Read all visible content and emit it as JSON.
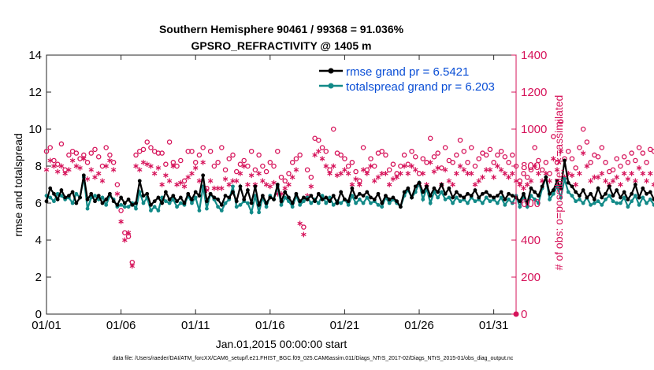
{
  "chart_data": {
    "type": "line",
    "title": "Southern Hemisphere 90461 / 99368 = 91.036%",
    "subtitle": "GPSRO_REFRACTIVITY @ 1405 m",
    "xlabel": "Jan.01,2015 00:00:00 start",
    "ylabel_left": "rmse and totalspread",
    "ylabel_right": "# of obs: o=possible; ∗=assimilated",
    "footer": "data file: /Users/raeder/DAI/ATM_forcXX/CAM6_setup/f.e21.FHIST_BGC.f09_025.CAM6assim.011/Diags_NTrS_2017-02/Diags_NTrS_2015-01/obs_diag_output.nc",
    "xlim": [
      1,
      32.5
    ],
    "x_ticks": [
      1,
      6,
      11,
      16,
      21,
      26,
      31
    ],
    "x_tick_labels": [
      "01/01",
      "01/06",
      "01/11",
      "01/16",
      "01/21",
      "01/26",
      "01/31"
    ],
    "ylim_left": [
      0,
      14
    ],
    "y_ticks_left": [
      "0",
      "2",
      "4",
      "6",
      "8",
      "10",
      "12",
      "14"
    ],
    "ylim_right": [
      0,
      1400
    ],
    "y_ticks_right": [
      "0",
      "200",
      "400",
      "600",
      "800",
      "1000",
      "1200",
      "1400"
    ],
    "colors": {
      "rmse": "#000000",
      "spread": "#128a88",
      "obs": "#d6135a",
      "legend_text": "#0b4fd6"
    },
    "x_start": 1.0,
    "x_step": 0.25,
    "series": [
      {
        "name": "rmse grand pr = 6.5421",
        "axis": "left",
        "values": [
          6.1,
          6.8,
          6.5,
          6.2,
          6.7,
          6.3,
          6.4,
          6.6,
          6.0,
          6.3,
          7.5,
          6.2,
          6.5,
          6.1,
          6.4,
          6.0,
          6.2,
          6.5,
          6.1,
          5.9,
          6.3,
          6.0,
          6.2,
          5.9,
          6.0,
          7.2,
          6.4,
          6.5,
          5.9,
          6.1,
          6.3,
          6.0,
          6.6,
          6.2,
          6.4,
          6.1,
          6.3,
          6.0,
          6.5,
          6.2,
          6.6,
          6.4,
          7.5,
          6.1,
          6.5,
          6.3,
          6.2,
          5.9,
          6.4,
          6.3,
          6.6,
          6.1,
          6.9,
          6.2,
          6.7,
          6.0,
          6.9,
          5.9,
          6.4,
          6.0,
          6.3,
          6.2,
          7.0,
          6.1,
          6.6,
          6.3,
          6.0,
          6.5,
          6.1,
          6.3,
          6.2,
          6.4,
          6.1,
          6.5,
          6.2,
          6.3,
          6.1,
          6.4,
          6.0,
          6.6,
          6.2,
          6.1,
          6.8,
          6.3,
          6.5,
          6.4,
          6.6,
          6.3,
          6.2,
          6.5,
          6.0,
          6.4,
          6.2,
          6.3,
          6.1,
          5.8,
          6.6,
          6.8,
          6.3,
          6.9,
          7.1,
          6.6,
          6.9,
          6.4,
          6.8,
          6.6,
          7.0,
          6.5,
          6.8,
          6.3,
          6.6,
          6.4,
          6.3,
          6.5,
          6.4,
          6.7,
          6.3,
          6.5,
          6.6,
          6.4,
          6.3,
          6.4,
          6.6,
          6.2,
          6.5,
          6.4,
          6.3,
          6.1,
          6.5,
          6.0,
          6.8,
          6.6,
          6.4,
          6.9,
          7.4,
          6.5,
          6.7,
          7.2,
          6.8,
          8.3,
          7.1,
          6.9,
          6.6,
          6.4,
          6.7,
          6.3,
          6.5,
          6.2,
          6.8,
          6.3,
          6.5,
          6.9,
          6.4,
          6.7,
          6.3,
          6.6,
          6.2,
          6.5,
          7.0,
          6.3,
          6.8,
          6.5,
          6.6,
          6.2,
          6.4,
          6.9,
          6.5,
          7.1,
          6.8,
          6.6,
          7.8,
          7.3,
          6.7,
          6.5,
          6.5
        ],
        "marker": "dot"
      },
      {
        "name": "totalspread grand pr = 6.203",
        "axis": "left",
        "values": [
          6.4,
          6.3,
          6.1,
          6.5,
          6.4,
          6.2,
          6.3,
          6.0,
          6.5,
          6.3,
          7.4,
          5.7,
          6.3,
          6.4,
          6.2,
          6.3,
          5.9,
          6.4,
          6.2,
          5.8,
          5.9,
          5.8,
          5.8,
          6.0,
          5.7,
          6.6,
          6.0,
          6.3,
          5.6,
          5.8,
          5.6,
          6.3,
          6.1,
          6.0,
          6.2,
          5.8,
          6.0,
          5.9,
          6.4,
          6.0,
          6.3,
          5.6,
          6.9,
          5.7,
          6.5,
          6.2,
          5.8,
          5.6,
          6.0,
          6.2,
          6.9,
          5.8,
          5.9,
          6.1,
          6.0,
          5.5,
          6.4,
          5.5,
          6.3,
          5.8,
          6.4,
          6.2,
          6.9,
          5.9,
          6.3,
          6.1,
          5.8,
          6.4,
          5.9,
          6.1,
          6.3,
          6.0,
          6.2,
          6.0,
          6.4,
          6.0,
          6.3,
          5.9,
          6.1,
          6.0,
          6.2,
          5.9,
          6.4,
          6.0,
          6.2,
          6.0,
          6.3,
          6.0,
          6.1,
          5.9,
          5.8,
          6.3,
          6.0,
          6.2,
          6.0,
          5.8,
          6.4,
          6.7,
          6.3,
          6.6,
          7.1,
          6.2,
          6.8,
          6.0,
          6.6,
          6.3,
          6.6,
          6.2,
          6.3,
          6.0,
          6.3,
          6.1,
          6.2,
          6.0,
          6.3,
          6.1,
          6.2,
          6.0,
          6.3,
          6.1,
          6.2,
          6.0,
          6.3,
          5.9,
          6.2,
          6.0,
          6.4,
          5.8,
          6.4,
          5.8,
          6.4,
          6.2,
          6.0,
          6.8,
          7.4,
          6.2,
          6.5,
          6.9,
          6.3,
          7.3,
          6.6,
          6.4,
          6.1,
          6.2,
          6.0,
          6.3,
          5.9,
          6.0,
          6.1,
          5.9,
          6.2,
          6.4,
          6.1,
          6.0,
          6.0,
          6.3,
          5.8,
          6.1,
          6.4,
          5.9,
          6.3,
          6.0,
          6.2,
          5.9,
          6.0,
          6.3,
          6.0,
          6.5,
          6.4,
          6.2,
          6.7,
          6.9,
          5.9,
          5.8,
          5.8
        ],
        "marker": "dot"
      },
      {
        "name": "obs possible",
        "axis": "right",
        "values": [
          880,
          900,
          830,
          810,
          920,
          780,
          860,
          880,
          870,
          840,
          860,
          820,
          870,
          890,
          850,
          800,
          900,
          860,
          820,
          700,
          560,
          440,
          420,
          280,
          860,
          880,
          890,
          930,
          900,
          880,
          870,
          870,
          810,
          930,
          820,
          800,
          830,
          720,
          880,
          880,
          820,
          860,
          900,
          680,
          880,
          800,
          820,
          900,
          780,
          840,
          860,
          770,
          810,
          830,
          800,
          880,
          780,
          860,
          800,
          770,
          820,
          800,
          880,
          740,
          720,
          760,
          820,
          840,
          860,
          470,
          780,
          740,
          950,
          940,
          900,
          880,
          780,
          1000,
          870,
          860,
          840,
          800,
          820,
          770,
          720,
          900,
          780,
          840,
          800,
          870,
          880,
          860,
          780,
          810,
          760,
          800,
          860,
          810,
          880,
          850,
          760,
          840,
          820,
          950,
          850,
          870,
          790,
          900,
          830,
          820,
          860,
          940,
          880,
          820,
          900,
          800,
          840,
          870,
          860,
          890,
          820,
          860,
          880,
          850,
          820,
          860,
          800,
          720,
          760,
          740,
          780,
          900,
          830,
          780,
          820,
          760,
          960,
          820,
          1040,
          840,
          880,
          840,
          790,
          900,
          1000,
          930,
          820,
          860,
          850,
          900,
          820,
          770,
          780,
          840,
          800,
          850,
          820,
          870,
          830,
          900,
          870,
          820,
          890,
          880,
          990,
          820,
          880,
          820,
          900,
          940
        ],
        "marker": "circle"
      },
      {
        "name": "obs assimilated",
        "axis": "right",
        "values": [
          780,
          830,
          800,
          770,
          800,
          760,
          780,
          830,
          800,
          790,
          840,
          730,
          780,
          740,
          760,
          720,
          800,
          830,
          780,
          650,
          500,
          400,
          440,
          260,
          800,
          780,
          820,
          810,
          800,
          760,
          790,
          700,
          750,
          720,
          800,
          700,
          710,
          690,
          740,
          760,
          790,
          720,
          820,
          670,
          720,
          680,
          680,
          680,
          730,
          700,
          720,
          720,
          760,
          800,
          700,
          750,
          700,
          760,
          720,
          700,
          690,
          710,
          650,
          650,
          680,
          700,
          740,
          780,
          490,
          430,
          640,
          690,
          860,
          880,
          840,
          800,
          760,
          800,
          750,
          760,
          780,
          760,
          700,
          730,
          700,
          780,
          760,
          800,
          720,
          740,
          760,
          760,
          700,
          730,
          740,
          760,
          800,
          760,
          800,
          780,
          700,
          760,
          700,
          820,
          770,
          790,
          700,
          780,
          720,
          700,
          760,
          800,
          780,
          760,
          760,
          700,
          720,
          740,
          780,
          780,
          740,
          800,
          780,
          760,
          740,
          760,
          720,
          700,
          680,
          700,
          720,
          800,
          760,
          720,
          760,
          720,
          840,
          780,
          880,
          740,
          760,
          750,
          700,
          760,
          870,
          800,
          720,
          740,
          740,
          760,
          720,
          700,
          720,
          740,
          700,
          760,
          730,
          760,
          720,
          790,
          760,
          720,
          760,
          700,
          850,
          730,
          760,
          720,
          780,
          860
        ],
        "marker": "asterisk"
      }
    ]
  }
}
